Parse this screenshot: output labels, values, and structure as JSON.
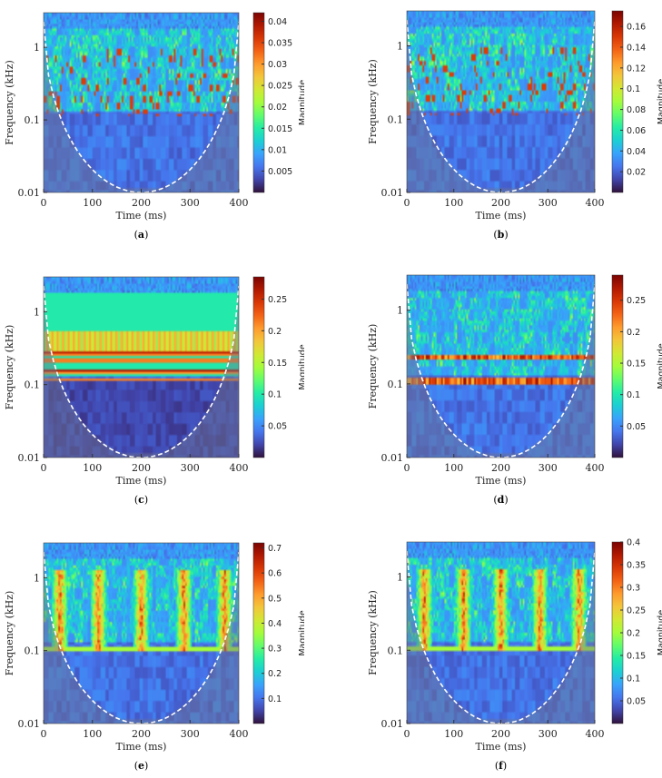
{
  "chart_data": [
    {
      "type": "heatmap",
      "id": "a",
      "label": "a",
      "xlabel": "Time (ms)",
      "ylabel": "Frequency (kHz)",
      "colorbar_label": "Magnitude",
      "x_ticks": [
        "0",
        "100",
        "200",
        "300",
        "400"
      ],
      "y_ticks": [
        "1",
        "0.1",
        "0.01"
      ],
      "y_scale": "log",
      "xlim": [
        0,
        400
      ],
      "ylim": [
        0.01,
        3
      ],
      "colorbar_ticks": [
        "0.005",
        "0.01",
        "0.015",
        "0.02",
        "0.025",
        "0.03",
        "0.035",
        "0.04"
      ],
      "colorbar_max": 0.042
    },
    {
      "type": "heatmap",
      "id": "b",
      "label": "b",
      "xlabel": "Time (ms)",
      "ylabel": "Frequency (kHz)",
      "colorbar_label": "Magnitude",
      "x_ticks": [
        "0",
        "100",
        "200",
        "300",
        "400"
      ],
      "y_ticks": [
        "1",
        "0.1",
        "0.01"
      ],
      "y_scale": "log",
      "xlim": [
        0,
        400
      ],
      "ylim": [
        0.01,
        3
      ],
      "colorbar_ticks": [
        "0.02",
        "0.04",
        "0.06",
        "0.08",
        "0.1",
        "0.12",
        "0.14",
        "0.16"
      ],
      "colorbar_max": 0.175
    },
    {
      "type": "heatmap",
      "id": "c",
      "label": "c",
      "xlabel": "Time (ms)",
      "ylabel": "Frequency (kHz)",
      "colorbar_label": "Magnitude",
      "x_ticks": [
        "0",
        "100",
        "200",
        "300",
        "400"
      ],
      "y_ticks": [
        "1",
        "0.1",
        "0.01"
      ],
      "y_scale": "log",
      "xlim": [
        0,
        400
      ],
      "ylim": [
        0.01,
        3
      ],
      "colorbar_ticks": [
        "0.05",
        "0.1",
        "0.15",
        "0.2",
        "0.25"
      ],
      "colorbar_max": 0.285
    },
    {
      "type": "heatmap",
      "id": "d",
      "label": "d",
      "xlabel": "Time (ms)",
      "ylabel": "Frequency (kHz)",
      "colorbar_label": "Magnitude",
      "x_ticks": [
        "0",
        "100",
        "200",
        "300",
        "400"
      ],
      "y_ticks": [
        "1",
        "0.1",
        "0.01"
      ],
      "y_scale": "log",
      "xlim": [
        0,
        400
      ],
      "ylim": [
        0.01,
        3
      ],
      "colorbar_ticks": [
        "0.05",
        "0.1",
        "0.15",
        "0.2",
        "0.25"
      ],
      "colorbar_max": 0.29
    },
    {
      "type": "heatmap",
      "id": "e",
      "label": "e",
      "xlabel": "Time (ms)",
      "ylabel": "Frequency (kHz)",
      "colorbar_label": "Magnitude",
      "x_ticks": [
        "0",
        "100",
        "200",
        "300",
        "400"
      ],
      "y_ticks": [
        "1",
        "0.1",
        "0.01"
      ],
      "y_scale": "log",
      "xlim": [
        0,
        400
      ],
      "ylim": [
        0.01,
        3
      ],
      "colorbar_ticks": [
        "0.1",
        "0.2",
        "0.3",
        "0.4",
        "0.5",
        "0.6",
        "0.7"
      ],
      "colorbar_max": 0.72
    },
    {
      "type": "heatmap",
      "id": "f",
      "label": "f",
      "xlabel": "Time (ms)",
      "ylabel": "Frequency (kHz)",
      "colorbar_label": "Magnitude",
      "x_ticks": [
        "0",
        "100",
        "200",
        "300",
        "400"
      ],
      "y_ticks": [
        "1",
        "0.1",
        "0.01"
      ],
      "y_scale": "log",
      "xlim": [
        0,
        400
      ],
      "ylim": [
        0.01,
        3
      ],
      "colorbar_ticks": [
        "0.05",
        "0.1",
        "0.15",
        "0.2",
        "0.25",
        "0.3",
        "0.35",
        "0.4"
      ],
      "colorbar_max": 0.4
    }
  ],
  "colors": {
    "colormap": [
      "#30123b",
      "#4145ab",
      "#4675ed",
      "#39a2fc",
      "#1bcfd4",
      "#24eca6",
      "#61fc6c",
      "#a4fc3b",
      "#d1e834",
      "#f3c63a",
      "#fe9b2d",
      "#f36315",
      "#d93806",
      "#b11901",
      "#7a0403"
    ],
    "coi_line": "#ffffff"
  }
}
